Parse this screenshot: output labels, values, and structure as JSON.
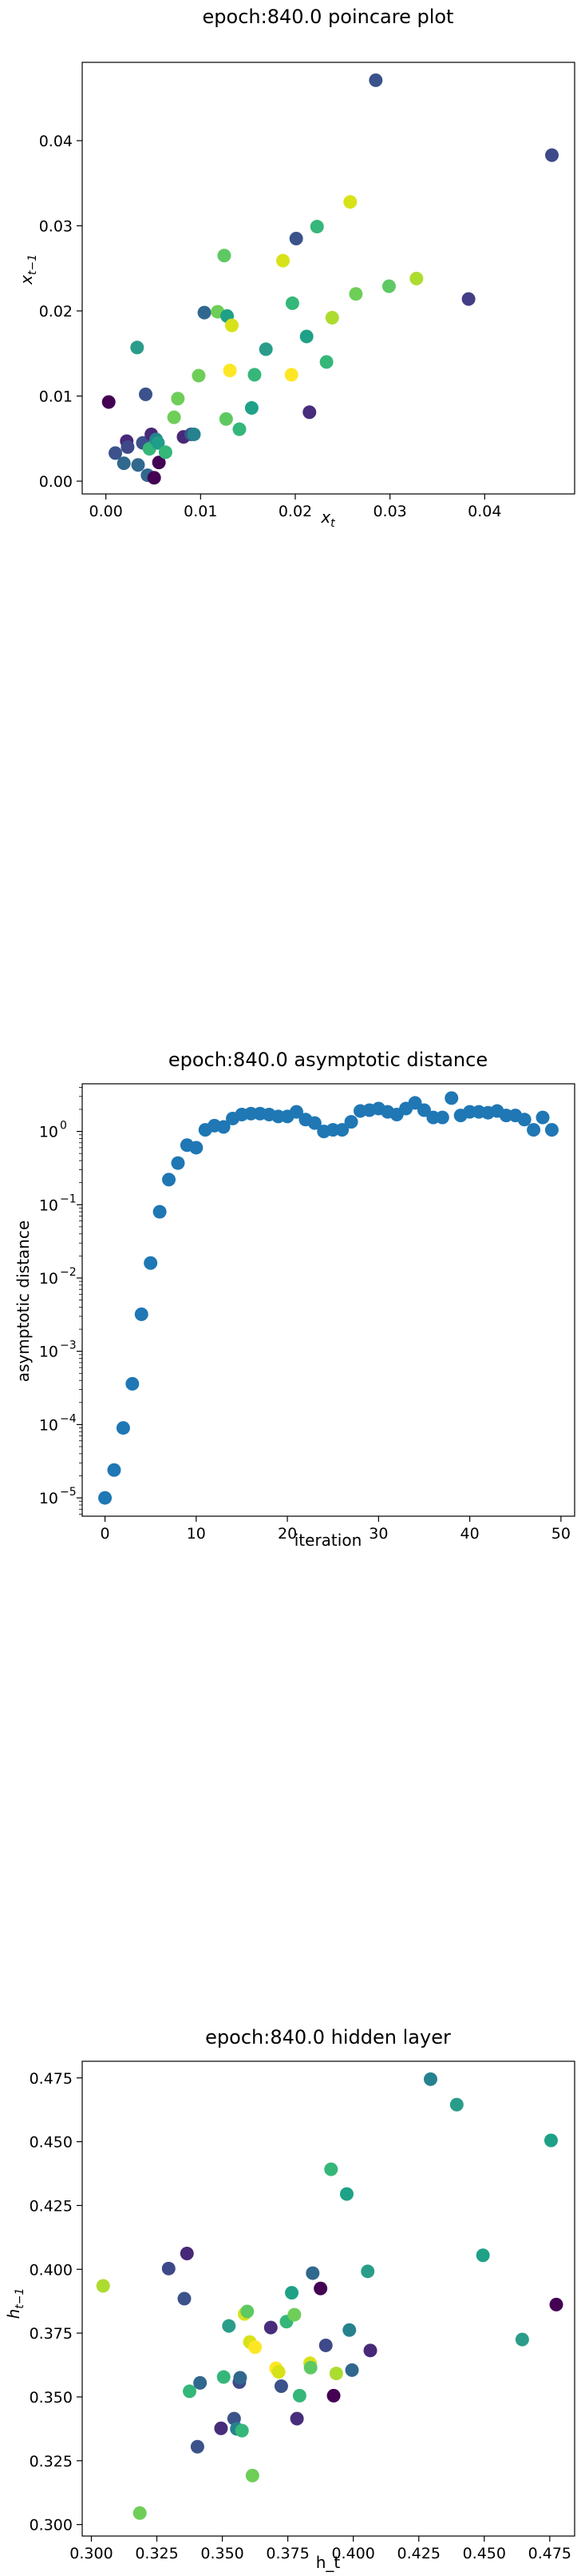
{
  "chart_data": [
    {
      "type": "scatter",
      "title": "epoch:840.0 poincare plot",
      "xlabel": "x_t",
      "ylabel": "x_{t-1}",
      "xlim": [
        -0.0025,
        0.0495
      ],
      "ylim": [
        -0.0015,
        0.0492
      ],
      "xticks": [
        "0.00",
        "0.01",
        "0.02",
        "0.03",
        "0.04"
      ],
      "xtick_values": [
        0,
        0.01,
        0.02,
        0.03,
        0.04
      ],
      "yticks": [
        "0.00",
        "0.01",
        "0.02",
        "0.03",
        "0.04"
      ],
      "ytick_values": [
        0,
        0.01,
        0.02,
        0.03,
        0.04
      ],
      "points": [
        {
          "x": 0.0003,
          "y": 0.0093,
          "c": "#440154"
        },
        {
          "x": 0.001,
          "y": 0.0033,
          "c": "#3b528b"
        },
        {
          "x": 0.0019,
          "y": 0.0021,
          "c": "#31688e"
        },
        {
          "x": 0.0022,
          "y": 0.0047,
          "c": "#482878"
        },
        {
          "x": 0.0023,
          "y": 0.004,
          "c": "#3e4989"
        },
        {
          "x": 0.0033,
          "y": 0.0157,
          "c": "#2a9d8a"
        },
        {
          "x": 0.0034,
          "y": 0.0019,
          "c": "#31688e"
        },
        {
          "x": 0.0039,
          "y": 0.0045,
          "c": "#3b528b"
        },
        {
          "x": 0.0042,
          "y": 0.0102,
          "c": "#3b528b"
        },
        {
          "x": 0.0044,
          "y": 0.0007,
          "c": "#31688e"
        },
        {
          "x": 0.0046,
          "y": 0.0038,
          "c": "#35b779"
        },
        {
          "x": 0.0048,
          "y": 0.0055,
          "c": "#482878"
        },
        {
          "x": 0.0051,
          "y": 0.0004,
          "c": "#440154"
        },
        {
          "x": 0.0053,
          "y": 0.0049,
          "c": "#26828e"
        },
        {
          "x": 0.0055,
          "y": 0.0045,
          "c": "#1f9e89"
        },
        {
          "x": 0.0056,
          "y": 0.0022,
          "c": "#440154"
        },
        {
          "x": 0.0063,
          "y": 0.0034,
          "c": "#35b779"
        },
        {
          "x": 0.0072,
          "y": 0.0075,
          "c": "#6ece58"
        },
        {
          "x": 0.0076,
          "y": 0.0097,
          "c": "#6ece58"
        },
        {
          "x": 0.0082,
          "y": 0.0052,
          "c": "#482878"
        },
        {
          "x": 0.009,
          "y": 0.0055,
          "c": "#3b528b"
        },
        {
          "x": 0.0093,
          "y": 0.0055,
          "c": "#26828e"
        },
        {
          "x": 0.0098,
          "y": 0.0124,
          "c": "#6ece58"
        },
        {
          "x": 0.0104,
          "y": 0.0198,
          "c": "#31688e"
        },
        {
          "x": 0.0118,
          "y": 0.0199,
          "c": "#6ece58"
        },
        {
          "x": 0.0125,
          "y": 0.0265,
          "c": "#5ec962"
        },
        {
          "x": 0.0127,
          "y": 0.0073,
          "c": "#5ec962"
        },
        {
          "x": 0.0128,
          "y": 0.0194,
          "c": "#1fa187"
        },
        {
          "x": 0.0131,
          "y": 0.013,
          "c": "#fde725"
        },
        {
          "x": 0.0133,
          "y": 0.0183,
          "c": "#d8e219"
        },
        {
          "x": 0.0141,
          "y": 0.0061,
          "c": "#35b779"
        },
        {
          "x": 0.0154,
          "y": 0.0086,
          "c": "#1fa187"
        },
        {
          "x": 0.0157,
          "y": 0.0125,
          "c": "#35b779"
        },
        {
          "x": 0.0169,
          "y": 0.0155,
          "c": "#2a9d8a"
        },
        {
          "x": 0.0187,
          "y": 0.0259,
          "c": "#d8e219"
        },
        {
          "x": 0.0196,
          "y": 0.0125,
          "c": "#fde725"
        },
        {
          "x": 0.0197,
          "y": 0.0209,
          "c": "#35b779"
        },
        {
          "x": 0.0201,
          "y": 0.0285,
          "c": "#3b528b"
        },
        {
          "x": 0.0212,
          "y": 0.017,
          "c": "#1fa187"
        },
        {
          "x": 0.0215,
          "y": 0.0081,
          "c": "#472d7b"
        },
        {
          "x": 0.0223,
          "y": 0.0299,
          "c": "#35b779"
        },
        {
          "x": 0.0233,
          "y": 0.014,
          "c": "#35b779"
        },
        {
          "x": 0.0239,
          "y": 0.0192,
          "c": "#addc30"
        },
        {
          "x": 0.0258,
          "y": 0.0328,
          "c": "#d8e219"
        },
        {
          "x": 0.0264,
          "y": 0.022,
          "c": "#6ece58"
        },
        {
          "x": 0.0285,
          "y": 0.0471,
          "c": "#3b528b"
        },
        {
          "x": 0.0299,
          "y": 0.0229,
          "c": "#5ec962"
        },
        {
          "x": 0.0328,
          "y": 0.0238,
          "c": "#addc30"
        },
        {
          "x": 0.0383,
          "y": 0.0214,
          "c": "#433e85"
        },
        {
          "x": 0.0471,
          "y": 0.0383,
          "c": "#3e4989"
        }
      ]
    },
    {
      "type": "scatter",
      "title": "epoch:840.0 asymptotic distance",
      "xlabel": "iteration",
      "ylabel": "asymptotic distance",
      "yscale": "log",
      "xlim": [
        -2.5,
        51.5
      ],
      "ylim_log10": [
        -5.25,
        0.65
      ],
      "xticks": [
        "0",
        "10",
        "20",
        "30",
        "40",
        "50"
      ],
      "xtick_values": [
        0,
        10,
        20,
        30,
        40,
        50
      ],
      "yticks": [
        {
          "base": "10",
          "exp": "0",
          "log": 0
        },
        {
          "base": "10",
          "exp": "−1",
          "log": -1
        },
        {
          "base": "10",
          "exp": "−2",
          "log": -2
        },
        {
          "base": "10",
          "exp": "−3",
          "log": -3
        },
        {
          "base": "10",
          "exp": "−4",
          "log": -4
        },
        {
          "base": "10",
          "exp": "−5",
          "log": -5
        }
      ],
      "color": "#1f77b4",
      "x": [
        0,
        1,
        2,
        3,
        4,
        5,
        6,
        7,
        8,
        9,
        10,
        11,
        12,
        13,
        14,
        15,
        16,
        17,
        18,
        19,
        20,
        21,
        22,
        23,
        24,
        25,
        26,
        27,
        28,
        29,
        30,
        31,
        32,
        33,
        34,
        35,
        36,
        37,
        38,
        39,
        40,
        41,
        42,
        43,
        44,
        45,
        46,
        47,
        48,
        49
      ],
      "y": [
        1e-05,
        2.4e-05,
        9e-05,
        0.00036,
        0.0032,
        0.016,
        0.08,
        0.22,
        0.37,
        0.65,
        0.6,
        1.05,
        1.2,
        1.15,
        1.5,
        1.7,
        1.75,
        1.75,
        1.7,
        1.6,
        1.6,
        1.85,
        1.45,
        1.3,
        1.0,
        1.05,
        1.05,
        1.35,
        1.9,
        1.95,
        2.05,
        1.85,
        1.7,
        2.05,
        2.45,
        1.95,
        1.55,
        1.55,
        2.85,
        1.65,
        1.85,
        1.85,
        1.8,
        1.9,
        1.65,
        1.65,
        1.45,
        1.05,
        1.55,
        1.05
      ]
    },
    {
      "type": "scatter",
      "title": "epoch:840.0 hidden layer",
      "xlabel": "h_t",
      "ylabel": "h_{t-1}",
      "xlim": [
        0.2965,
        0.4845
      ],
      "ylim": [
        0.2955,
        0.4815
      ],
      "xticks": [
        "0.300",
        "0.325",
        "0.350",
        "0.375",
        "0.400",
        "0.425",
        "0.450",
        "0.475"
      ],
      "xtick_values": [
        0.3,
        0.325,
        0.35,
        0.375,
        0.4,
        0.425,
        0.45,
        0.475
      ],
      "yticks": [
        "0.300",
        "0.325",
        "0.350",
        "0.375",
        "0.400",
        "0.425",
        "0.450",
        "0.475"
      ],
      "ytick_values": [
        0.3,
        0.325,
        0.35,
        0.375,
        0.4,
        0.425,
        0.45,
        0.475
      ],
      "points": [
        {
          "x": 0.3045,
          "y": 0.3935,
          "c": "#addc30"
        },
        {
          "x": 0.3185,
          "y": 0.3045,
          "c": "#6ece58"
        },
        {
          "x": 0.3295,
          "y": 0.4003,
          "c": "#3e4989"
        },
        {
          "x": 0.3355,
          "y": 0.3885,
          "c": "#3b528b"
        },
        {
          "x": 0.3365,
          "y": 0.4062,
          "c": "#482878"
        },
        {
          "x": 0.3375,
          "y": 0.3522,
          "c": "#35b779"
        },
        {
          "x": 0.3405,
          "y": 0.3305,
          "c": "#3b528b"
        },
        {
          "x": 0.3415,
          "y": 0.3555,
          "c": "#31688e"
        },
        {
          "x": 0.3495,
          "y": 0.3377,
          "c": "#472d7b"
        },
        {
          "x": 0.3505,
          "y": 0.3578,
          "c": "#35b779"
        },
        {
          "x": 0.3525,
          "y": 0.3778,
          "c": "#2a9d8a"
        },
        {
          "x": 0.3545,
          "y": 0.3415,
          "c": "#3b528b"
        },
        {
          "x": 0.3555,
          "y": 0.3375,
          "c": "#26828e"
        },
        {
          "x": 0.3565,
          "y": 0.3558,
          "c": "#3e4989"
        },
        {
          "x": 0.3568,
          "y": 0.3575,
          "c": "#31688e"
        },
        {
          "x": 0.3575,
          "y": 0.3368,
          "c": "#35b779"
        },
        {
          "x": 0.3585,
          "y": 0.3825,
          "c": "#d8e219"
        },
        {
          "x": 0.3595,
          "y": 0.3835,
          "c": "#5ec962"
        },
        {
          "x": 0.3605,
          "y": 0.3715,
          "c": "#d8e219"
        },
        {
          "x": 0.3615,
          "y": 0.3192,
          "c": "#6ece58"
        },
        {
          "x": 0.3625,
          "y": 0.3695,
          "c": "#fde725"
        },
        {
          "x": 0.3685,
          "y": 0.3772,
          "c": "#472d7b"
        },
        {
          "x": 0.3705,
          "y": 0.3612,
          "c": "#fde725"
        },
        {
          "x": 0.3715,
          "y": 0.3598,
          "c": "#d8e219"
        },
        {
          "x": 0.3725,
          "y": 0.3542,
          "c": "#3b528b"
        },
        {
          "x": 0.3745,
          "y": 0.3795,
          "c": "#35b779"
        },
        {
          "x": 0.3765,
          "y": 0.3908,
          "c": "#1fa187"
        },
        {
          "x": 0.3775,
          "y": 0.3822,
          "c": "#6ece58"
        },
        {
          "x": 0.3785,
          "y": 0.3415,
          "c": "#472d7b"
        },
        {
          "x": 0.3795,
          "y": 0.3505,
          "c": "#35b779"
        },
        {
          "x": 0.3835,
          "y": 0.3632,
          "c": "#d8e219"
        },
        {
          "x": 0.3837,
          "y": 0.3615,
          "c": "#5ec962"
        },
        {
          "x": 0.3845,
          "y": 0.3985,
          "c": "#31688e"
        },
        {
          "x": 0.3875,
          "y": 0.3925,
          "c": "#440154"
        },
        {
          "x": 0.3895,
          "y": 0.3702,
          "c": "#3e4989"
        },
        {
          "x": 0.3915,
          "y": 0.4392,
          "c": "#35b779"
        },
        {
          "x": 0.3925,
          "y": 0.3505,
          "c": "#440154"
        },
        {
          "x": 0.3935,
          "y": 0.3592,
          "c": "#addc30"
        },
        {
          "x": 0.3975,
          "y": 0.4295,
          "c": "#1fa187"
        },
        {
          "x": 0.3985,
          "y": 0.3762,
          "c": "#26828e"
        },
        {
          "x": 0.3995,
          "y": 0.3605,
          "c": "#31688e"
        },
        {
          "x": 0.4055,
          "y": 0.3992,
          "c": "#2a9d8a"
        },
        {
          "x": 0.4065,
          "y": 0.3682,
          "c": "#482878"
        },
        {
          "x": 0.4295,
          "y": 0.4745,
          "c": "#26828e"
        },
        {
          "x": 0.4395,
          "y": 0.4645,
          "c": "#2a9d8a"
        },
        {
          "x": 0.4495,
          "y": 0.4055,
          "c": "#1fa187"
        },
        {
          "x": 0.4645,
          "y": 0.3725,
          "c": "#2a9d8a"
        },
        {
          "x": 0.4755,
          "y": 0.4505,
          "c": "#1fa187"
        },
        {
          "x": 0.4775,
          "y": 0.3862,
          "c": "#440154"
        }
      ]
    }
  ]
}
